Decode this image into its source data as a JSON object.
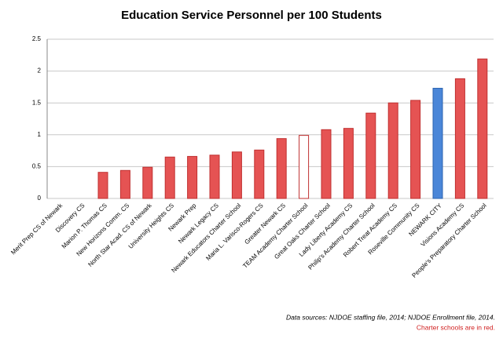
{
  "chart_data": {
    "type": "bar",
    "title": "Education Service Personnel per 100 Students",
    "categories": [
      "Merit Prep CS of Newark",
      "Discovery CS",
      "Marion P. Thomas CS",
      "New Horizons Comm. CS",
      "North Star Acad. CS of Newark",
      "University Heights CS",
      "Newark Prep",
      "Newark Legacy CS",
      "Newark Educators Charter School",
      "Maria L. Varisco-Rogers CS",
      "Greater Newark CS",
      "TEAM Academy Charter School",
      "Great Oaks Charter School",
      "Lady Liberty Academy CS",
      "Philip's Academy Charter School",
      "Robert Treat Academy CS",
      "Roseville Community CS",
      "NEWARK CITY",
      "Visions Academy CS",
      "People's Preparatory Charter School"
    ],
    "values": [
      0,
      0,
      0.41,
      0.44,
      0.49,
      0.65,
      0.66,
      0.68,
      0.73,
      0.76,
      0.94,
      0.99,
      1.08,
      1.1,
      1.34,
      1.5,
      1.54,
      1.73,
      1.88,
      2.19
    ],
    "colors": [
      "#e55353",
      "#e55353",
      "#e55353",
      "#e55353",
      "#e55353",
      "#e55353",
      "#e55353",
      "#e55353",
      "#e55353",
      "#e55353",
      "#e55353",
      "#ffffff",
      "#e55353",
      "#e55353",
      "#e55353",
      "#e55353",
      "#e55353",
      "#4a86d8",
      "#e55353",
      "#e55353"
    ],
    "edge_colors": [
      "#c03030",
      "#c03030",
      "#c03030",
      "#c03030",
      "#c03030",
      "#c03030",
      "#c03030",
      "#c03030",
      "#c03030",
      "#c03030",
      "#c03030",
      "#c03030",
      "#c03030",
      "#c03030",
      "#c03030",
      "#c03030",
      "#c03030",
      "#2c64b0",
      "#c03030",
      "#c03030"
    ],
    "ylim": [
      0,
      2.5
    ],
    "yticks": [
      0,
      0.5,
      1,
      1.5,
      2,
      2.5
    ],
    "grid": true,
    "notes": [
      "Data sources: NJDOE staffing file, 2014; NJDOE Enrollment file, 2014.",
      "Charter schools are in red."
    ]
  }
}
